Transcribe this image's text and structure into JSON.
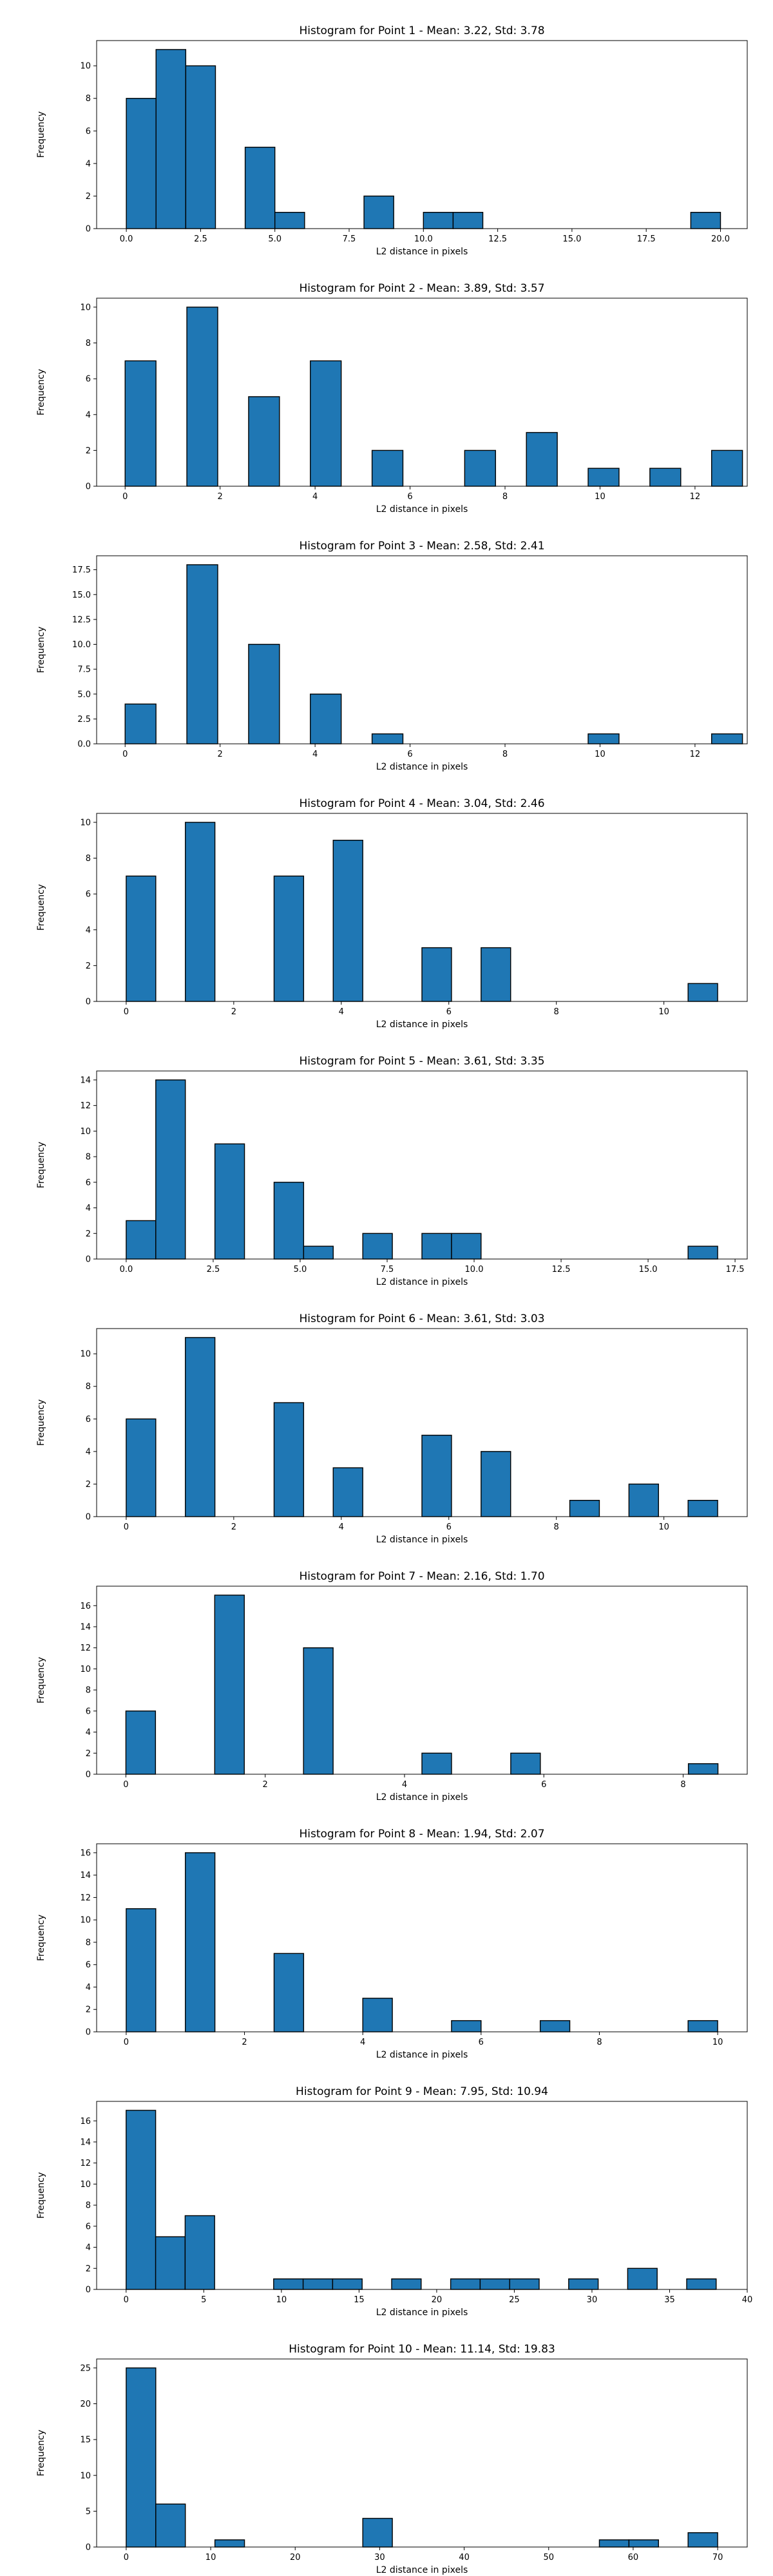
{
  "chart_data": [
    {
      "type": "bar",
      "title": "Histogram for Point 1 - Mean: 3.22, Std: 3.78",
      "xlabel": "L2 distance in pixels",
      "ylabel": "Frequency",
      "xlim": [
        -1.0,
        20.9
      ],
      "ylim": [
        0,
        11.55
      ],
      "xticks": [
        0.0,
        2.5,
        5.0,
        7.5,
        10.0,
        12.5,
        15.0,
        17.5,
        20.0
      ],
      "xtick_labels": [
        "0.0",
        "2.5",
        "5.0",
        "7.5",
        "10.0",
        "12.5",
        "15.0",
        "17.5",
        "20.0"
      ],
      "yticks": [
        0,
        2,
        4,
        6,
        8,
        10
      ],
      "ytick_labels": [
        "0",
        "2",
        "4",
        "6",
        "8",
        "10"
      ],
      "grid": false,
      "bins": [
        {
          "x0": 0.0,
          "x1": 1.0,
          "count": 8
        },
        {
          "x0": 1.0,
          "x1": 2.0,
          "count": 11
        },
        {
          "x0": 2.0,
          "x1": 3.0,
          "count": 10
        },
        {
          "x0": 4.0,
          "x1": 5.0,
          "count": 5
        },
        {
          "x0": 5.0,
          "x1": 6.0,
          "count": 1
        },
        {
          "x0": 8.0,
          "x1": 9.0,
          "count": 2
        },
        {
          "x0": 10.0,
          "x1": 11.0,
          "count": 1
        },
        {
          "x0": 11.0,
          "x1": 12.0,
          "count": 1
        },
        {
          "x0": 19.0,
          "x1": 20.0,
          "count": 1
        }
      ]
    },
    {
      "type": "bar",
      "title": "Histogram for Point 2 - Mean: 3.89, Std: 3.57",
      "xlabel": "L2 distance in pixels",
      "ylabel": "Frequency",
      "xlim": [
        -0.6,
        13.1
      ],
      "ylim": [
        0,
        10.5
      ],
      "xticks": [
        0,
        2,
        4,
        6,
        8,
        10,
        12
      ],
      "xtick_labels": [
        "0",
        "2",
        "4",
        "6",
        "8",
        "10",
        "12"
      ],
      "yticks": [
        0,
        2,
        4,
        6,
        8,
        10
      ],
      "ytick_labels": [
        "0",
        "2",
        "4",
        "6",
        "8",
        "10"
      ],
      "grid": false,
      "bins": [
        {
          "x0": 0.0,
          "x1": 0.65,
          "count": 7
        },
        {
          "x0": 1.3,
          "x1": 1.95,
          "count": 10
        },
        {
          "x0": 2.6,
          "x1": 3.25,
          "count": 5
        },
        {
          "x0": 3.9,
          "x1": 4.55,
          "count": 7
        },
        {
          "x0": 5.2,
          "x1": 5.85,
          "count": 2
        },
        {
          "x0": 7.15,
          "x1": 7.8,
          "count": 2
        },
        {
          "x0": 8.45,
          "x1": 9.1,
          "count": 3
        },
        {
          "x0": 9.75,
          "x1": 10.4,
          "count": 1
        },
        {
          "x0": 11.05,
          "x1": 11.7,
          "count": 1
        },
        {
          "x0": 12.35,
          "x1": 13.0,
          "count": 2
        }
      ]
    },
    {
      "type": "bar",
      "title": "Histogram for Point 3 - Mean: 2.58, Std: 2.41",
      "xlabel": "L2 distance in pixels",
      "ylabel": "Frequency",
      "xlim": [
        -0.6,
        13.1
      ],
      "ylim": [
        0,
        18.9
      ],
      "xticks": [
        0,
        2,
        4,
        6,
        8,
        10,
        12
      ],
      "xtick_labels": [
        "0",
        "2",
        "4",
        "6",
        "8",
        "10",
        "12"
      ],
      "yticks": [
        0,
        2.5,
        5,
        7.5,
        10,
        12.5,
        15,
        17.5
      ],
      "ytick_labels": [
        "0.0",
        "2.5",
        "5.0",
        "7.5",
        "10.0",
        "12.5",
        "15.0",
        "17.5"
      ],
      "grid": false,
      "bins": [
        {
          "x0": 0.0,
          "x1": 0.65,
          "count": 4
        },
        {
          "x0": 1.3,
          "x1": 1.95,
          "count": 18
        },
        {
          "x0": 2.6,
          "x1": 3.25,
          "count": 10
        },
        {
          "x0": 3.9,
          "x1": 4.55,
          "count": 5
        },
        {
          "x0": 5.2,
          "x1": 5.85,
          "count": 1
        },
        {
          "x0": 9.75,
          "x1": 10.4,
          "count": 1
        },
        {
          "x0": 12.35,
          "x1": 13.0,
          "count": 1
        }
      ]
    },
    {
      "type": "bar",
      "title": "Histogram for Point 4 - Mean: 3.04, Std: 2.46",
      "xlabel": "L2 distance in pixels",
      "ylabel": "Frequency",
      "xlim": [
        -0.55,
        11.55
      ],
      "ylim": [
        0,
        10.5
      ],
      "xticks": [
        0,
        2,
        4,
        6,
        8,
        10
      ],
      "xtick_labels": [
        "0",
        "2",
        "4",
        "6",
        "8",
        "10"
      ],
      "yticks": [
        0,
        2,
        4,
        6,
        8,
        10
      ],
      "ytick_labels": [
        "0",
        "2",
        "4",
        "6",
        "8",
        "10"
      ],
      "grid": false,
      "bins": [
        {
          "x0": 0.0,
          "x1": 0.55,
          "count": 7
        },
        {
          "x0": 1.1,
          "x1": 1.65,
          "count": 10
        },
        {
          "x0": 2.75,
          "x1": 3.3,
          "count": 7
        },
        {
          "x0": 3.85,
          "x1": 4.4,
          "count": 9
        },
        {
          "x0": 5.5,
          "x1": 6.05,
          "count": 3
        },
        {
          "x0": 6.6,
          "x1": 7.15,
          "count": 3
        },
        {
          "x0": 10.45,
          "x1": 11.0,
          "count": 1
        }
      ]
    },
    {
      "type": "bar",
      "title": "Histogram for Point 5 - Mean: 3.61, Std: 3.35",
      "xlabel": "L2 distance in pixels",
      "ylabel": "Frequency",
      "xlim": [
        -0.85,
        17.85
      ],
      "ylim": [
        0,
        14.7
      ],
      "xticks": [
        0.0,
        2.5,
        5.0,
        7.5,
        10.0,
        12.5,
        15.0,
        17.5
      ],
      "xtick_labels": [
        "0.0",
        "2.5",
        "5.0",
        "7.5",
        "10.0",
        "12.5",
        "15.0",
        "17.5"
      ],
      "yticks": [
        0,
        2,
        4,
        6,
        8,
        10,
        12,
        14
      ],
      "ytick_labels": [
        "0",
        "2",
        "4",
        "6",
        "8",
        "10",
        "12",
        "14"
      ],
      "grid": false,
      "bins": [
        {
          "x0": 0.0,
          "x1": 0.85,
          "count": 3
        },
        {
          "x0": 0.85,
          "x1": 1.7,
          "count": 14
        },
        {
          "x0": 2.55,
          "x1": 3.4,
          "count": 9
        },
        {
          "x0": 4.25,
          "x1": 5.1,
          "count": 6
        },
        {
          "x0": 5.1,
          "x1": 5.95,
          "count": 1
        },
        {
          "x0": 6.8,
          "x1": 7.65,
          "count": 2
        },
        {
          "x0": 8.5,
          "x1": 9.35,
          "count": 2
        },
        {
          "x0": 9.35,
          "x1": 10.2,
          "count": 2
        },
        {
          "x0": 16.15,
          "x1": 17.0,
          "count": 1
        }
      ]
    },
    {
      "type": "bar",
      "title": "Histogram for Point 6 - Mean: 3.61, Std: 3.03",
      "xlabel": "L2 distance in pixels",
      "ylabel": "Frequency",
      "xlim": [
        -0.55,
        11.55
      ],
      "ylim": [
        0,
        11.55
      ],
      "xticks": [
        0,
        2,
        4,
        6,
        8,
        10
      ],
      "xtick_labels": [
        "0",
        "2",
        "4",
        "6",
        "8",
        "10"
      ],
      "yticks": [
        0,
        2,
        4,
        6,
        8,
        10
      ],
      "ytick_labels": [
        "0",
        "2",
        "4",
        "6",
        "8",
        "10"
      ],
      "grid": false,
      "bins": [
        {
          "x0": 0.0,
          "x1": 0.55,
          "count": 6
        },
        {
          "x0": 1.1,
          "x1": 1.65,
          "count": 11
        },
        {
          "x0": 2.75,
          "x1": 3.3,
          "count": 7
        },
        {
          "x0": 3.85,
          "x1": 4.4,
          "count": 3
        },
        {
          "x0": 5.5,
          "x1": 6.05,
          "count": 5
        },
        {
          "x0": 6.6,
          "x1": 7.15,
          "count": 4
        },
        {
          "x0": 8.25,
          "x1": 8.8,
          "count": 1
        },
        {
          "x0": 9.35,
          "x1": 9.9,
          "count": 2
        },
        {
          "x0": 10.45,
          "x1": 11.0,
          "count": 1
        }
      ]
    },
    {
      "type": "bar",
      "title": "Histogram for Point 7 - Mean: 2.16, Std: 1.70",
      "xlabel": "L2 distance in pixels",
      "ylabel": "Frequency",
      "xlim": [
        -0.42,
        8.92
      ],
      "ylim": [
        0,
        17.85
      ],
      "xticks": [
        0,
        2,
        4,
        6,
        8
      ],
      "xtick_labels": [
        "0",
        "2",
        "4",
        "6",
        "8"
      ],
      "yticks": [
        0,
        2,
        4,
        6,
        8,
        10,
        12,
        14,
        16
      ],
      "ytick_labels": [
        "0",
        "2",
        "4",
        "6",
        "8",
        "10",
        "12",
        "14",
        "16"
      ],
      "grid": false,
      "bins": [
        {
          "x0": 0.0,
          "x1": 0.425,
          "count": 6
        },
        {
          "x0": 1.275,
          "x1": 1.7,
          "count": 17
        },
        {
          "x0": 2.55,
          "x1": 2.975,
          "count": 12
        },
        {
          "x0": 4.25,
          "x1": 4.675,
          "count": 2
        },
        {
          "x0": 5.525,
          "x1": 5.95,
          "count": 2
        },
        {
          "x0": 8.075,
          "x1": 8.5,
          "count": 1
        }
      ]
    },
    {
      "type": "bar",
      "title": "Histogram for Point 8 - Mean: 1.94, Std: 2.07",
      "xlabel": "L2 distance in pixels",
      "ylabel": "Frequency",
      "xlim": [
        -0.5,
        10.5
      ],
      "ylim": [
        0,
        16.8
      ],
      "xticks": [
        0,
        2,
        4,
        6,
        8,
        10
      ],
      "xtick_labels": [
        "0",
        "2",
        "4",
        "6",
        "8",
        "10"
      ],
      "yticks": [
        0,
        2,
        4,
        6,
        8,
        10,
        12,
        14,
        16
      ],
      "ytick_labels": [
        "0",
        "2",
        "4",
        "6",
        "8",
        "10",
        "12",
        "14",
        "16"
      ],
      "grid": false,
      "bins": [
        {
          "x0": 0.0,
          "x1": 0.5,
          "count": 11
        },
        {
          "x0": 1.0,
          "x1": 1.5,
          "count": 16
        },
        {
          "x0": 2.5,
          "x1": 3.0,
          "count": 7
        },
        {
          "x0": 4.0,
          "x1": 4.5,
          "count": 3
        },
        {
          "x0": 5.5,
          "x1": 6.0,
          "count": 1
        },
        {
          "x0": 7.0,
          "x1": 7.5,
          "count": 1
        },
        {
          "x0": 9.5,
          "x1": 10.0,
          "count": 1
        }
      ]
    },
    {
      "type": "bar",
      "title": "Histogram for Point 9 - Mean: 7.95, Std: 10.94",
      "xlabel": "L2 distance in pixels",
      "ylabel": "Frequency",
      "xlim": [
        -1.9,
        40.0
      ],
      "ylim": [
        0,
        17.85
      ],
      "xticks": [
        0,
        5,
        10,
        15,
        20,
        25,
        30,
        35,
        40
      ],
      "xtick_labels": [
        "0",
        "5",
        "10",
        "15",
        "20",
        "25",
        "30",
        "35",
        "40"
      ],
      "yticks": [
        0,
        2,
        4,
        6,
        8,
        10,
        12,
        14,
        16
      ],
      "ytick_labels": [
        "0",
        "2",
        "4",
        "6",
        "8",
        "10",
        "12",
        "14",
        "16"
      ],
      "grid": false,
      "bins": [
        {
          "x0": 0.0,
          "x1": 1.9,
          "count": 17
        },
        {
          "x0": 1.9,
          "x1": 3.8,
          "count": 5
        },
        {
          "x0": 3.8,
          "x1": 5.7,
          "count": 7
        },
        {
          "x0": 9.5,
          "x1": 11.4,
          "count": 1
        },
        {
          "x0": 11.4,
          "x1": 13.3,
          "count": 1
        },
        {
          "x0": 13.3,
          "x1": 15.2,
          "count": 1
        },
        {
          "x0": 17.1,
          "x1": 19.0,
          "count": 1
        },
        {
          "x0": 20.9,
          "x1": 22.8,
          "count": 1
        },
        {
          "x0": 22.8,
          "x1": 24.7,
          "count": 1
        },
        {
          "x0": 24.7,
          "x1": 26.6,
          "count": 1
        },
        {
          "x0": 28.5,
          "x1": 30.4,
          "count": 1
        },
        {
          "x0": 32.3,
          "x1": 34.2,
          "count": 2
        },
        {
          "x0": 36.1,
          "x1": 38.0,
          "count": 1
        }
      ]
    },
    {
      "type": "bar",
      "title": "Histogram for Point 10 - Mean: 11.14, Std: 19.83",
      "xlabel": "L2 distance in pixels",
      "ylabel": "Frequency",
      "xlim": [
        -3.5,
        73.5
      ],
      "ylim": [
        0,
        26.25
      ],
      "xticks": [
        0,
        10,
        20,
        30,
        40,
        50,
        60,
        70
      ],
      "xtick_labels": [
        "0",
        "10",
        "20",
        "30",
        "40",
        "50",
        "60",
        "70"
      ],
      "yticks": [
        0,
        5,
        10,
        15,
        20,
        25
      ],
      "ytick_labels": [
        "0",
        "5",
        "10",
        "15",
        "20",
        "25"
      ],
      "grid": false,
      "bins": [
        {
          "x0": 0.0,
          "x1": 3.5,
          "count": 25
        },
        {
          "x0": 3.5,
          "x1": 7.0,
          "count": 6
        },
        {
          "x0": 10.5,
          "x1": 14.0,
          "count": 1
        },
        {
          "x0": 28.0,
          "x1": 31.5,
          "count": 4
        },
        {
          "x0": 56.0,
          "x1": 59.5,
          "count": 1
        },
        {
          "x0": 59.5,
          "x1": 63.0,
          "count": 1
        },
        {
          "x0": 66.5,
          "x1": 70.0,
          "count": 2
        }
      ]
    }
  ]
}
